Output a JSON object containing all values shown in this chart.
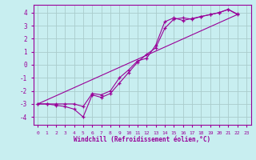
{
  "background_color": "#c8eef0",
  "grid_color": "#aacccc",
  "line_color": "#990099",
  "marker": "+",
  "xlabel": "Windchill (Refroidissement éolien,°C)",
  "xlim": [
    -0.5,
    23.5
  ],
  "ylim": [
    -4.6,
    4.6
  ],
  "yticks": [
    -4,
    -3,
    -2,
    -1,
    0,
    1,
    2,
    3,
    4
  ],
  "xticks": [
    0,
    1,
    2,
    3,
    4,
    5,
    6,
    7,
    8,
    9,
    10,
    11,
    12,
    13,
    14,
    15,
    16,
    17,
    18,
    19,
    20,
    21,
    22,
    23
  ],
  "series": [
    {
      "x": [
        0,
        1,
        2,
        3,
        4,
        5,
        6,
        7,
        8,
        9,
        10,
        11,
        12,
        13,
        14,
        15,
        16,
        17,
        18,
        19,
        20,
        21,
        22
      ],
      "y": [
        -3,
        -3,
        -3.1,
        -3.2,
        -3.4,
        -4.0,
        -2.3,
        -2.5,
        -2.2,
        -1.4,
        -0.6,
        0.2,
        0.8,
        1.3,
        2.8,
        3.5,
        3.6,
        3.5,
        3.7,
        3.85,
        4.0,
        4.25,
        3.9
      ]
    },
    {
      "x": [
        0,
        1,
        2,
        3,
        4,
        5,
        6,
        7,
        8,
        9,
        10,
        11,
        12,
        13,
        14,
        15,
        16,
        17,
        18,
        19,
        20,
        21,
        22
      ],
      "y": [
        -3,
        -3,
        -3,
        -3,
        -3,
        -3.2,
        -2.2,
        -2.3,
        -2.0,
        -1.0,
        -0.4,
        0.3,
        0.5,
        1.5,
        3.3,
        3.6,
        3.4,
        3.55,
        3.7,
        3.85,
        4.0,
        4.25,
        3.85
      ]
    },
    {
      "x": [
        0,
        22
      ],
      "y": [
        -3,
        3.85
      ]
    }
  ]
}
